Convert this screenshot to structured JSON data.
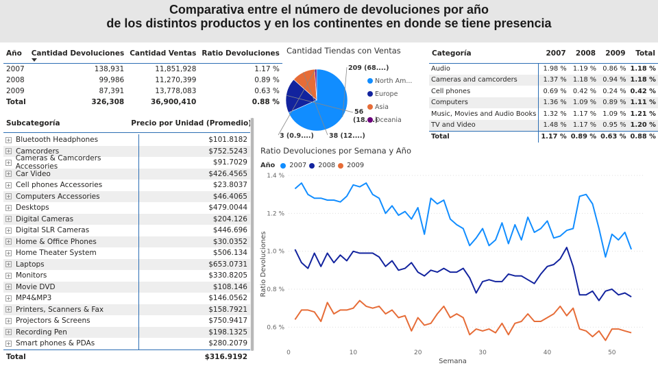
{
  "header": {
    "title_line1": "Comparativa entre el número de devoluciones por año",
    "title_line2": "de los distintos productos y en los continentes en donde se tiene presencia"
  },
  "summary_table": {
    "columns": [
      "Año",
      "Cantidad Devoluciones",
      "Cantidad Ventas",
      "Ratio Devoluciones"
    ],
    "rows": [
      [
        "2007",
        "138,931",
        "11,851,928",
        "1.17 %"
      ],
      [
        "2008",
        "99,986",
        "11,270,399",
        "0.89 %"
      ],
      [
        "2009",
        "87,391",
        "13,778,083",
        "0.63 %"
      ]
    ],
    "total": [
      "Total",
      "326,308",
      "36,900,410",
      "0.88 %"
    ]
  },
  "subcategory_table": {
    "columns": [
      "Subcategoría",
      "Precio por Unidad (Promedio)"
    ],
    "rows": [
      [
        "Bluetooth Headphones",
        "$101.8182"
      ],
      [
        "Camcorders",
        "$752.5243"
      ],
      [
        "Cameras & Camcorders Accessories",
        "$91.7029"
      ],
      [
        "Car Video",
        "$426.4565"
      ],
      [
        "Cell phones Accessories",
        "$23.8037"
      ],
      [
        "Computers Accessories",
        "$46.4065"
      ],
      [
        "Desktops",
        "$479.0044"
      ],
      [
        "Digital Cameras",
        "$204.126"
      ],
      [
        "Digital SLR Cameras",
        "$446.696"
      ],
      [
        "Home & Office Phones",
        "$30.0352"
      ],
      [
        "Home Theater System",
        "$506.134"
      ],
      [
        "Laptops",
        "$653.0731"
      ],
      [
        "Monitors",
        "$330.8205"
      ],
      [
        "Movie DVD",
        "$108.146"
      ],
      [
        "MP4&MP3",
        "$146.0562"
      ],
      [
        "Printers, Scanners & Fax",
        "$158.7921"
      ],
      [
        "Projectors & Screens",
        "$750.9417"
      ],
      [
        "Recording Pen",
        "$198.1325"
      ],
      [
        "Smart phones & PDAs",
        "$280.2079"
      ]
    ],
    "total": [
      "Total",
      "$316.9192"
    ]
  },
  "category_table": {
    "columns": [
      "Categoría",
      "2007",
      "2008",
      "2009",
      "Total"
    ],
    "rows": [
      [
        "Audio",
        "1.98 %",
        "1.19 %",
        "0.86 %",
        "1.18 %"
      ],
      [
        "Cameras and camcorders",
        "1.37 %",
        "1.18 %",
        "0.94 %",
        "1.18 %"
      ],
      [
        "Cell phones",
        "0.69 %",
        "0.42 %",
        "0.24 %",
        "0.42 %"
      ],
      [
        "Computers",
        "1.36 %",
        "1.09 %",
        "0.89 %",
        "1.11 %"
      ],
      [
        "Music, Movies and Audio Books",
        "1.32 %",
        "1.17 %",
        "1.09 %",
        "1.21 %"
      ],
      [
        "TV and Video",
        "1.48 %",
        "1.17 %",
        "0.95 %",
        "1.20 %"
      ]
    ],
    "total": [
      "Total",
      "1.17 %",
      "0.89 %",
      "0.63 %",
      "0.88 %"
    ]
  },
  "chart_data": [
    {
      "type": "pie",
      "title": "Cantidad Tiendas con Ventas",
      "categories": [
        "North Am...",
        "Europe",
        "Asia",
        "Oceania"
      ],
      "values": [
        209,
        56,
        38,
        3
      ],
      "labels": [
        "209 (68....)",
        "56 (18....)",
        "38 (12....)",
        "3 (0.9....)"
      ],
      "colors": [
        "#118dff",
        "#12239e",
        "#e66c37",
        "#6b007b"
      ],
      "legend": "right"
    },
    {
      "type": "line",
      "title": "Ratio Devoluciones por Semana y Año",
      "legend_title": "Año",
      "xlabel": "Semana",
      "ylabel": "Ratio Devoluciones",
      "xlim": [
        0,
        55
      ],
      "ylim": [
        0.5,
        1.4
      ],
      "xticks": [
        0,
        10,
        20,
        30,
        40,
        50
      ],
      "yticks": [
        0.6,
        0.8,
        1.0,
        1.2,
        1.4
      ],
      "ytick_labels": [
        "0.6 %",
        "0.8 %",
        "1.0 %",
        "1.2 %",
        "1.4 %"
      ],
      "x": [
        1,
        2,
        3,
        4,
        5,
        6,
        7,
        8,
        9,
        10,
        11,
        12,
        13,
        14,
        15,
        16,
        17,
        18,
        19,
        20,
        21,
        22,
        23,
        24,
        25,
        26,
        27,
        28,
        29,
        30,
        31,
        32,
        33,
        34,
        35,
        36,
        37,
        38,
        39,
        40,
        41,
        42,
        43,
        44,
        45,
        46,
        47,
        48,
        49,
        50,
        51,
        52,
        53
      ],
      "series": [
        {
          "name": "2007",
          "color": "#118dff",
          "values": [
            1.33,
            1.36,
            1.3,
            1.28,
            1.28,
            1.27,
            1.27,
            1.26,
            1.29,
            1.35,
            1.34,
            1.36,
            1.3,
            1.28,
            1.2,
            1.24,
            1.19,
            1.21,
            1.17,
            1.23,
            1.09,
            1.28,
            1.25,
            1.27,
            1.17,
            1.14,
            1.12,
            1.03,
            1.07,
            1.12,
            1.03,
            1.06,
            1.15,
            1.04,
            1.14,
            1.06,
            1.18,
            1.1,
            1.12,
            1.16,
            1.07,
            1.08,
            1.11,
            1.12,
            1.29,
            1.3,
            1.25,
            1.12,
            0.97,
            1.09,
            1.06,
            1.1,
            1.01
          ]
        },
        {
          "name": "2008",
          "color": "#12239e",
          "values": [
            1.01,
            0.94,
            0.91,
            0.99,
            0.92,
            0.99,
            0.94,
            0.98,
            0.95,
            1.0,
            0.99,
            0.99,
            0.99,
            0.97,
            0.92,
            0.95,
            0.9,
            0.91,
            0.94,
            0.89,
            0.87,
            0.9,
            0.89,
            0.91,
            0.89,
            0.89,
            0.91,
            0.86,
            0.78,
            0.84,
            0.85,
            0.84,
            0.84,
            0.88,
            0.87,
            0.87,
            0.85,
            0.83,
            0.88,
            0.92,
            0.93,
            0.96,
            1.02,
            0.92,
            0.77,
            0.77,
            0.79,
            0.74,
            0.79,
            0.8,
            0.77,
            0.78,
            0.76
          ]
        },
        {
          "name": "2009",
          "color": "#e66c37",
          "values": [
            0.64,
            0.69,
            0.69,
            0.68,
            0.63,
            0.73,
            0.67,
            0.69,
            0.69,
            0.7,
            0.74,
            0.71,
            0.7,
            0.71,
            0.67,
            0.69,
            0.65,
            0.66,
            0.58,
            0.65,
            0.61,
            0.62,
            0.67,
            0.71,
            0.65,
            0.67,
            0.65,
            0.56,
            0.59,
            0.58,
            0.59,
            0.57,
            0.62,
            0.56,
            0.62,
            0.63,
            0.67,
            0.63,
            0.63,
            0.65,
            0.67,
            0.71,
            0.66,
            0.7,
            0.59,
            0.58,
            0.55,
            0.58,
            0.53,
            0.59,
            0.59,
            0.58,
            0.57
          ]
        }
      ]
    }
  ]
}
